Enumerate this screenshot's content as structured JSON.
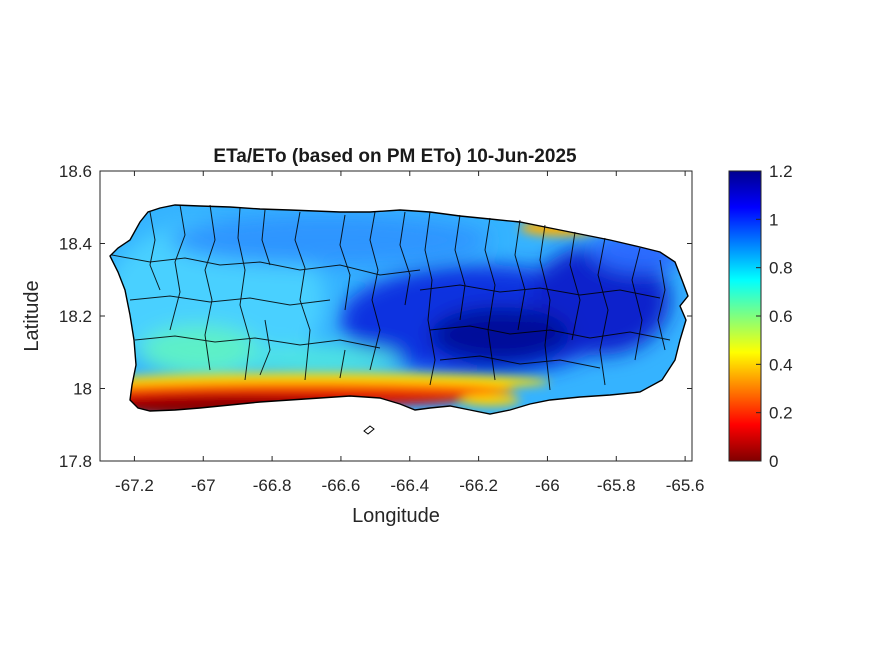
{
  "figure": {
    "title": "ETa/ETo (based on PM ETo) 10-Jun-2025",
    "xlabel": "Longitude",
    "ylabel": "Latitude"
  },
  "axes": {
    "xlim": [
      -67.3,
      -65.58
    ],
    "ylim": [
      17.8,
      18.6
    ],
    "xticks": [
      -67.2,
      -67,
      -66.8,
      -66.6,
      -66.4,
      -66.2,
      -66,
      -65.8,
      -65.6
    ],
    "xtick_labels": [
      "-67.2",
      "-67",
      "-66.8",
      "-66.6",
      "-66.4",
      "-66.2",
      "-66",
      "-65.8",
      "-65.6"
    ],
    "yticks": [
      17.8,
      18,
      18.2,
      18.4,
      18.6
    ],
    "ytick_labels": [
      "17.8",
      "18",
      "18.2",
      "18.4",
      "18.6"
    ]
  },
  "colorbar": {
    "colormap": "jet",
    "range": [
      0,
      1.2
    ],
    "ticks": [
      0,
      0.2,
      0.4,
      0.6,
      0.8,
      1,
      1.2
    ],
    "tick_labels": [
      "0",
      "0.2",
      "0.4",
      "0.6",
      "0.8",
      "1",
      "1.2"
    ]
  },
  "map": {
    "region": "Puerto Rico",
    "variable": "ETa/ETo ratio",
    "pattern": "low values (0–0.3) along the southern coast; moderate 0.7–0.9 across the west and north; high 1.0–1.2 over the central-eastern interior",
    "colors": {
      "jet_dark_red": "#800000",
      "jet_red": "#ff0000",
      "jet_yellow": "#ffff00",
      "jet_cyan": "#00ffff",
      "jet_blue": "#0000ff",
      "jet_dark_blue": "#00008f",
      "boundary": "#000000"
    }
  }
}
